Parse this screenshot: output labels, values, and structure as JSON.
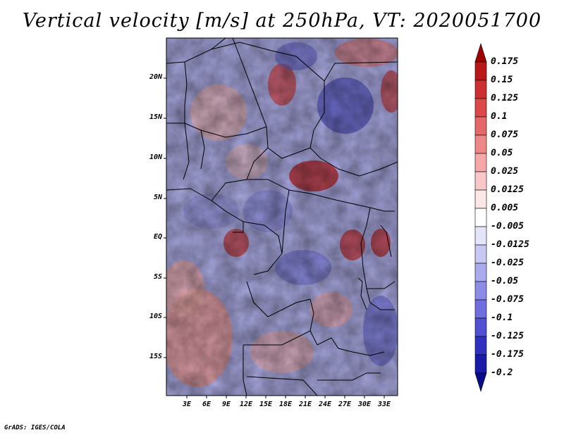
{
  "title": "Vertical velocity [m/s] at 250hPa, VT: 2020051700",
  "credit": "GrADS: IGES/COLA",
  "lat_ticks": [
    "20N",
    "15N",
    "10N",
    "5N",
    "EQ",
    "5S",
    "10S",
    "15S"
  ],
  "lon_ticks": [
    "3E",
    "6E",
    "9E",
    "12E",
    "15E",
    "18E",
    "21E",
    "24E",
    "27E",
    "30E",
    "33E"
  ],
  "colorbar": {
    "labels": [
      "0.175",
      "0.15",
      "0.125",
      "0.1",
      "0.075",
      "0.05",
      "0.025",
      "0.0125",
      "0.005",
      "-0.005",
      "-0.0125",
      "-0.025",
      "-0.05",
      "-0.075",
      "-0.1",
      "-0.125",
      "-0.175",
      "-0.2"
    ],
    "colors": [
      "#a00000",
      "#b81818",
      "#cc3030",
      "#dc4848",
      "#e66868",
      "#ee8888",
      "#f4a8a8",
      "#f8c8c8",
      "#fce6e6",
      "#ffffff",
      "#e4e4fa",
      "#c8c8f4",
      "#aaaaee",
      "#8c8ce6",
      "#6e6ede",
      "#5050d2",
      "#3030c0",
      "#1a1aa8",
      "#0a0a8c"
    ]
  }
}
